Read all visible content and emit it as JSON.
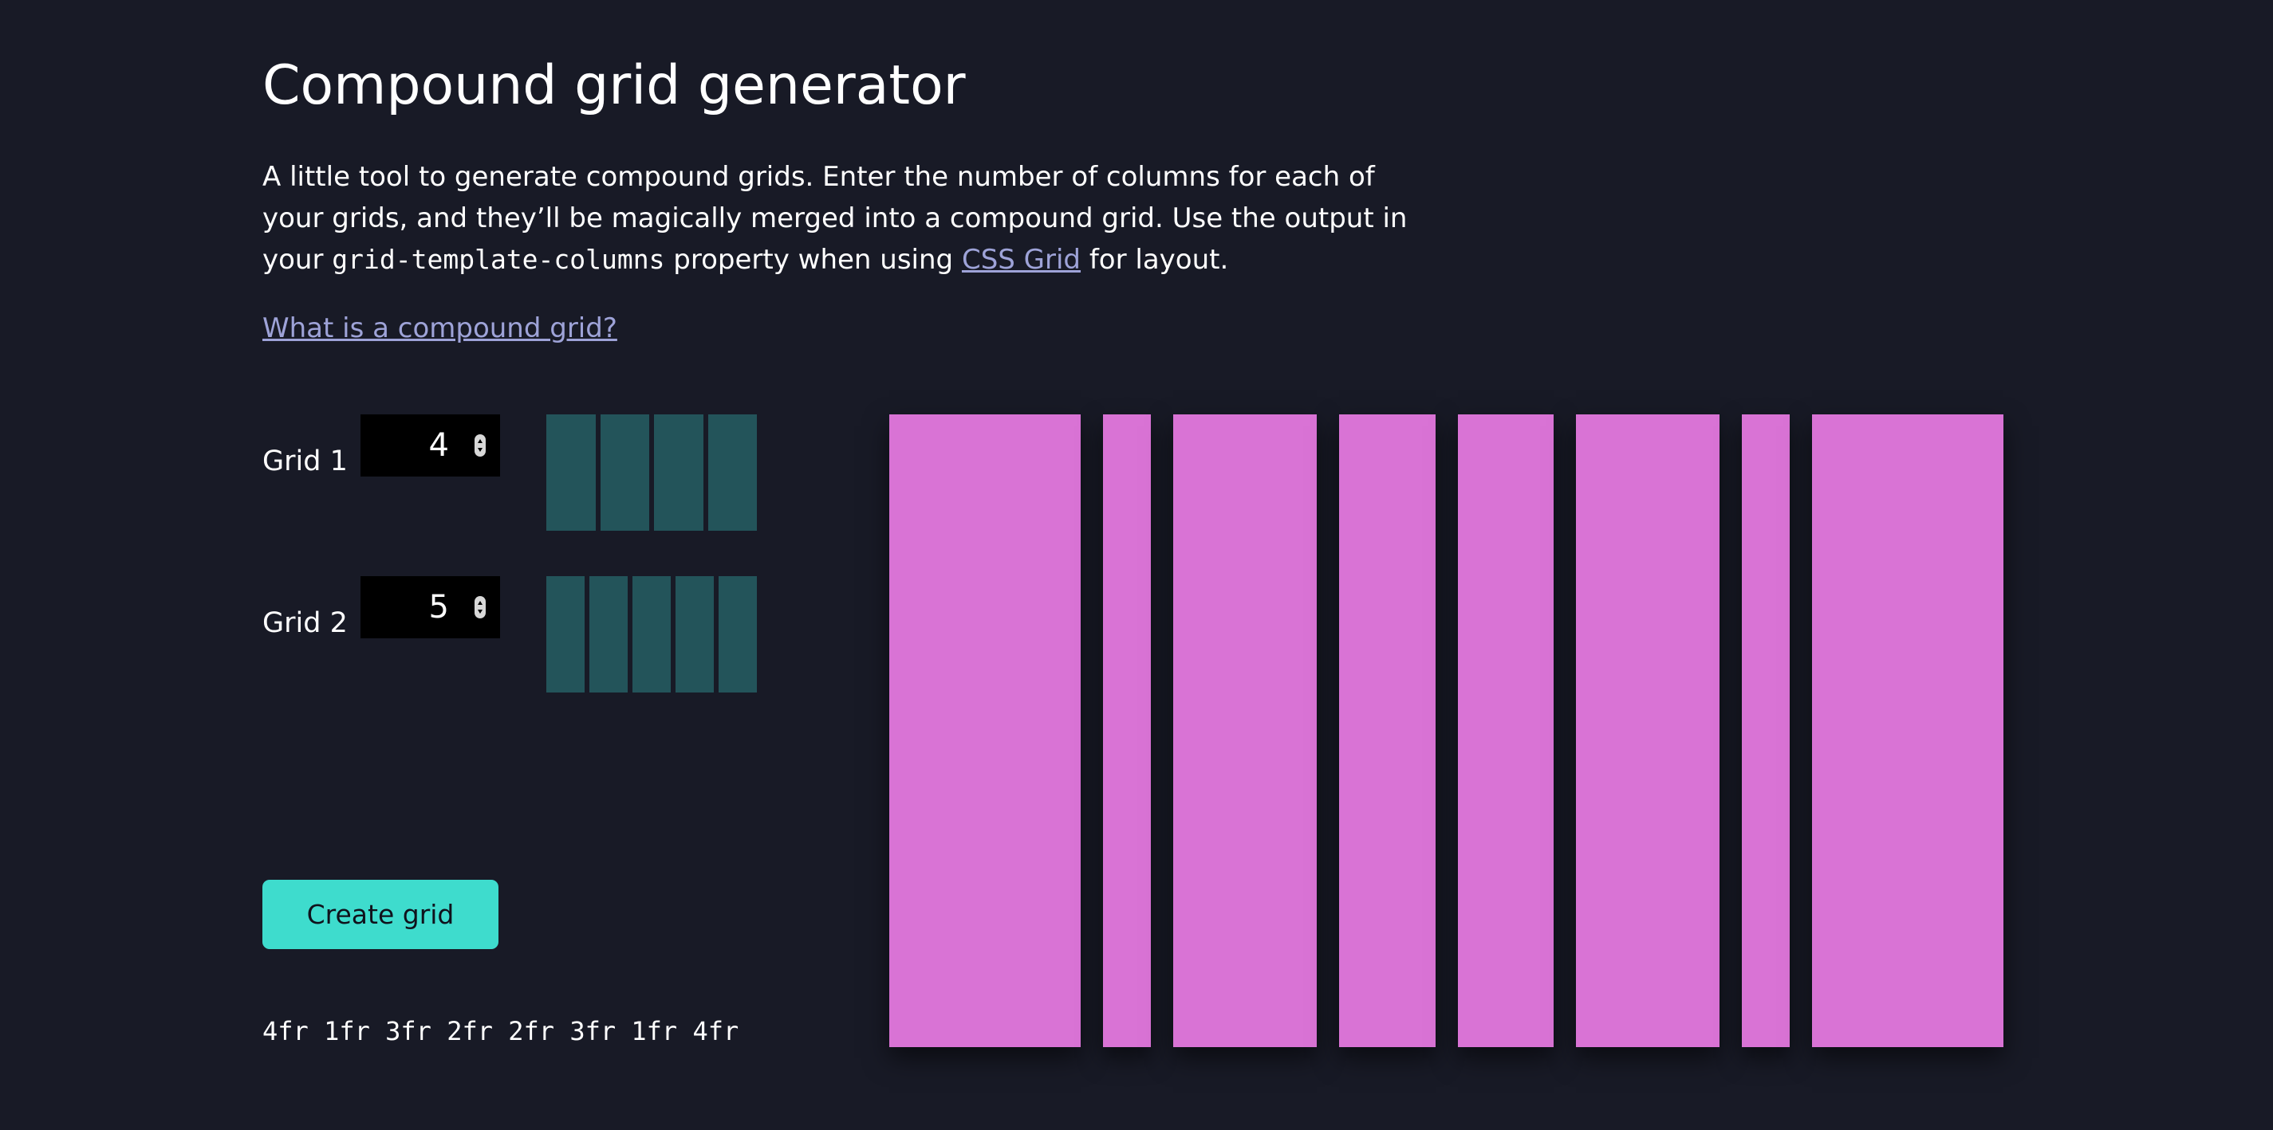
{
  "page": {
    "title": "Compound grid generator",
    "intro": {
      "text_before": "A little tool to generate compound grids. Enter the number of columns for each of your grids, and they’ll be magically merged into a compound grid. Use the output in your ",
      "code": "grid-template-columns",
      "text_middle": " property when using ",
      "link": "CSS Grid",
      "text_after": " for layout."
    },
    "what_link": "What is a compound grid?"
  },
  "grids": [
    {
      "label": "Grid 1",
      "value": "4",
      "columns": 4
    },
    {
      "label": "Grid 2",
      "value": "5",
      "columns": 5
    }
  ],
  "create_button": "Create grid",
  "output": {
    "fractions": [
      4,
      1,
      3,
      2,
      2,
      3,
      1,
      4
    ],
    "text": "4fr 1fr 3fr 2fr 2fr 3fr 1fr 4fr"
  },
  "colors": {
    "background": "#181a26",
    "preview_column": "#23545a",
    "compound_column": "#d973d5",
    "button": "#3edccd",
    "link": "#9ea3d8"
  }
}
